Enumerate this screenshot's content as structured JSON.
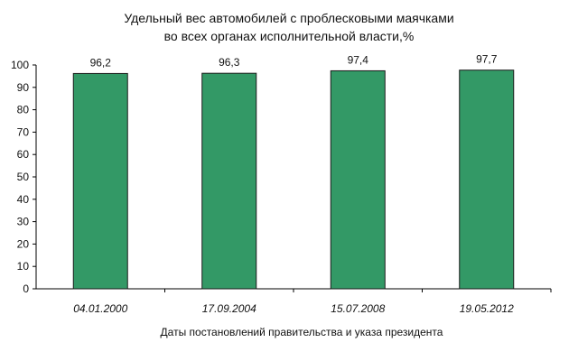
{
  "chart_data": {
    "type": "bar",
    "title_lines": [
      "Удельный вес автомобилей с проблесковыми маячками",
      "во всех органах исполнительной власти,%"
    ],
    "categories": [
      "04.01.2000",
      "17.09.2004",
      "15.07.2008",
      "19.05.2012"
    ],
    "values": [
      96.2,
      96.3,
      97.4,
      97.7
    ],
    "value_labels": [
      "96,2",
      "96,3",
      "97,4",
      "97,7"
    ],
    "xlabel": "Даты постановлений правительства и указа президента",
    "ylabel": "",
    "ylim": [
      0,
      100
    ],
    "yticks": [
      0,
      10,
      20,
      30,
      40,
      50,
      60,
      70,
      80,
      90,
      100
    ],
    "bar_color": "#339966",
    "grid": false,
    "legend": "none"
  }
}
